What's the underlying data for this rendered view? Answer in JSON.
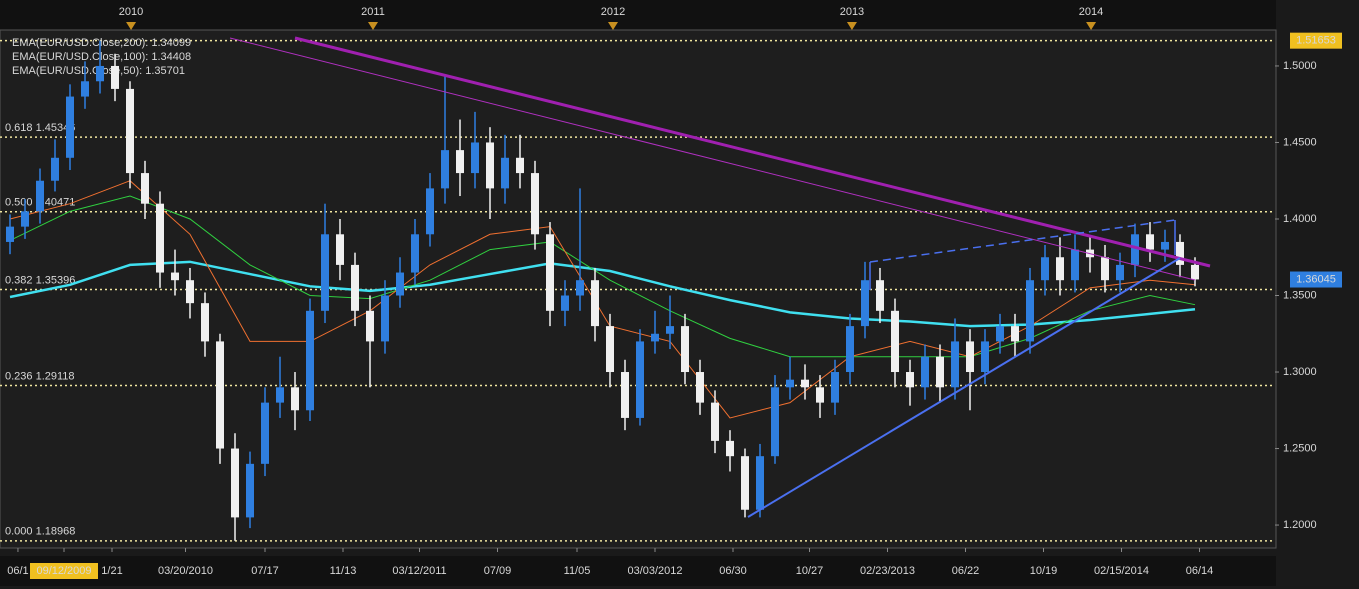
{
  "chart_data": {
    "type": "candlestick",
    "xlim": [
      -0.6667,
      84.3333
    ],
    "ylim": [
      1.185,
      1.5235
    ],
    "yticks": [
      {
        "value": 1.5,
        "label": "1.5000"
      },
      {
        "value": 1.45,
        "label": "1.4500"
      },
      {
        "value": 1.4,
        "label": "1.4000"
      },
      {
        "value": 1.35,
        "label": "1.3500"
      },
      {
        "value": 1.3,
        "label": "1.3000"
      },
      {
        "value": 1.25,
        "label": "1.2500"
      },
      {
        "value": 1.2,
        "label": "1.2000"
      }
    ],
    "xticks": [
      {
        "value": 0.53,
        "label": "06/1"
      },
      {
        "value": 3.6,
        "label": "09/12/2009"
      },
      {
        "value": 6.8,
        "label": "1/21"
      },
      {
        "value": 11.7,
        "label": "03/20/2010"
      },
      {
        "value": 17,
        "label": "07/17"
      },
      {
        "value": 22.2,
        "label": "11/13"
      },
      {
        "value": 27.3,
        "label": "03/12/2011"
      },
      {
        "value": 32.5,
        "label": "07/09"
      },
      {
        "value": 37.8,
        "label": "11/05"
      },
      {
        "value": 43,
        "label": "03/03/2012"
      },
      {
        "value": 48.2,
        "label": "06/30"
      },
      {
        "value": 53.3,
        "label": "10/27"
      },
      {
        "value": 58.5,
        "label": "02/23/2013"
      },
      {
        "value": 63.7,
        "label": "06/22"
      },
      {
        "value": 68.9,
        "label": "10/19"
      },
      {
        "value": 74.1,
        "label": "02/15/2014"
      },
      {
        "value": 79.3,
        "label": "06/14"
      }
    ],
    "year_ticks": [
      {
        "value": 8.07,
        "label": "2010"
      },
      {
        "value": 24.2,
        "label": "2011"
      },
      {
        "value": 40.2,
        "label": "2012"
      },
      {
        "value": 56.13,
        "label": "2013"
      },
      {
        "value": 72.07,
        "label": "2014"
      }
    ],
    "up_color": "#2f7fe0",
    "down_color": "#f0f0f0",
    "open": [
      1.385,
      1.395,
      1.405,
      1.425,
      1.44,
      1.48,
      1.49,
      1.5,
      1.485,
      1.43,
      1.41,
      1.365,
      1.36,
      1.345,
      1.32,
      1.25,
      1.205,
      1.24,
      1.28,
      1.29,
      1.275,
      1.34,
      1.39,
      1.37,
      1.34,
      1.32,
      1.35,
      1.365,
      1.39,
      1.42,
      1.445,
      1.43,
      1.45,
      1.42,
      1.44,
      1.43,
      1.39,
      1.34,
      1.35,
      1.36,
      1.33,
      1.3,
      1.27,
      1.32,
      1.325,
      1.33,
      1.3,
      1.28,
      1.255,
      1.245,
      1.21,
      1.245,
      1.29,
      1.295,
      1.29,
      1.28,
      1.3,
      1.33,
      1.36,
      1.34,
      1.3,
      1.29,
      1.31,
      1.29,
      1.32,
      1.3,
      1.32,
      1.33,
      1.32,
      1.36,
      1.375,
      1.36,
      1.38,
      1.375,
      1.36,
      1.37,
      1.39,
      1.38,
      1.385,
      1.37
    ],
    "high": [
      1.403,
      1.413,
      1.433,
      1.452,
      1.488,
      1.503,
      1.51653,
      1.508,
      1.49,
      1.438,
      1.418,
      1.38,
      1.368,
      1.352,
      1.325,
      1.26,
      1.248,
      1.29,
      1.31,
      1.3,
      1.348,
      1.41,
      1.4,
      1.378,
      1.35,
      1.36,
      1.375,
      1.4,
      1.43,
      1.494,
      1.465,
      1.47,
      1.46,
      1.455,
      1.455,
      1.438,
      1.398,
      1.36,
      1.42,
      1.368,
      1.338,
      1.308,
      1.328,
      1.34,
      1.35,
      1.338,
      1.308,
      1.288,
      1.262,
      1.25,
      1.253,
      1.298,
      1.31,
      1.305,
      1.298,
      1.308,
      1.338,
      1.372,
      1.368,
      1.348,
      1.308,
      1.318,
      1.318,
      1.335,
      1.328,
      1.328,
      1.338,
      1.338,
      1.368,
      1.383,
      1.388,
      1.39,
      1.388,
      1.383,
      1.378,
      1.397,
      1.398,
      1.393,
      1.39,
      1.375
    ],
    "low": [
      1.377,
      1.387,
      1.397,
      1.418,
      1.432,
      1.472,
      1.482,
      1.477,
      1.42,
      1.4,
      1.355,
      1.35,
      1.335,
      1.31,
      1.24,
      1.18968,
      1.198,
      1.232,
      1.27,
      1.262,
      1.268,
      1.332,
      1.36,
      1.33,
      1.29,
      1.312,
      1.342,
      1.357,
      1.382,
      1.41,
      1.415,
      1.42,
      1.4,
      1.41,
      1.42,
      1.38,
      1.33,
      1.33,
      1.34,
      1.32,
      1.29,
      1.262,
      1.265,
      1.312,
      1.315,
      1.292,
      1.272,
      1.247,
      1.235,
      1.205,
      1.205,
      1.24,
      1.282,
      1.282,
      1.27,
      1.272,
      1.292,
      1.322,
      1.332,
      1.29,
      1.278,
      1.282,
      1.28,
      1.282,
      1.275,
      1.292,
      1.312,
      1.31,
      1.312,
      1.35,
      1.35,
      1.352,
      1.365,
      1.352,
      1.352,
      1.362,
      1.372,
      1.372,
      1.362,
      1.356
    ],
    "close": [
      1.395,
      1.405,
      1.425,
      1.44,
      1.48,
      1.49,
      1.5,
      1.485,
      1.43,
      1.41,
      1.365,
      1.36,
      1.345,
      1.32,
      1.25,
      1.205,
      1.24,
      1.28,
      1.29,
      1.275,
      1.34,
      1.39,
      1.37,
      1.34,
      1.32,
      1.35,
      1.365,
      1.39,
      1.42,
      1.445,
      1.43,
      1.45,
      1.42,
      1.44,
      1.43,
      1.39,
      1.34,
      1.35,
      1.36,
      1.33,
      1.3,
      1.27,
      1.32,
      1.325,
      1.33,
      1.3,
      1.28,
      1.255,
      1.245,
      1.21,
      1.245,
      1.29,
      1.295,
      1.29,
      1.28,
      1.3,
      1.33,
      1.36,
      1.34,
      1.3,
      1.29,
      1.31,
      1.29,
      1.32,
      1.3,
      1.32,
      1.33,
      1.32,
      1.36,
      1.375,
      1.36,
      1.38,
      1.375,
      1.36,
      1.37,
      1.39,
      1.38,
      1.385,
      1.37,
      1.3605
    ],
    "series": [
      {
        "name": "EMA(EUR/USD.Close,200): 1.34099",
        "color": "#40e0f0",
        "width": 2.5,
        "x": [
          0,
          4,
          8,
          12,
          16,
          20,
          24,
          28,
          32,
          36,
          40,
          44,
          48,
          52,
          56,
          60,
          64,
          68,
          72,
          76,
          79
        ],
        "values": [
          1.349,
          1.357,
          1.37,
          1.372,
          1.364,
          1.356,
          1.353,
          1.357,
          1.364,
          1.371,
          1.366,
          1.356,
          1.347,
          1.339,
          1.335,
          1.333,
          1.33,
          1.331,
          1.334,
          1.338,
          1.341
        ]
      },
      {
        "name": "EMA(EUR/USD.Close,100): 1.34408",
        "color": "#30d040",
        "width": 1,
        "x": [
          0,
          4,
          8,
          12,
          16,
          20,
          24,
          28,
          32,
          36,
          40,
          44,
          48,
          52,
          56,
          60,
          64,
          68,
          72,
          76,
          79
        ],
        "values": [
          1.386,
          1.405,
          1.415,
          1.4,
          1.37,
          1.35,
          1.348,
          1.36,
          1.38,
          1.385,
          1.36,
          1.34,
          1.322,
          1.31,
          1.31,
          1.31,
          1.31,
          1.322,
          1.34,
          1.35,
          1.344
        ]
      },
      {
        "name": "EMA(EUR/USD.Close,50): 1.35701",
        "color": "#f07030",
        "width": 1,
        "x": [
          0,
          4,
          8,
          12,
          16,
          20,
          24,
          28,
          32,
          36,
          40,
          44,
          48,
          52,
          56,
          60,
          64,
          68,
          72,
          76,
          79
        ],
        "values": [
          1.4,
          1.41,
          1.425,
          1.39,
          1.32,
          1.32,
          1.34,
          1.37,
          1.39,
          1.395,
          1.33,
          1.32,
          1.27,
          1.28,
          1.31,
          1.32,
          1.31,
          1.33,
          1.355,
          1.36,
          1.357
        ]
      }
    ],
    "fib_levels": [
      {
        "label": "0.618 1.45346",
        "value": 1.45346
      },
      {
        "label": "0.500 1.40471",
        "value": 1.40471
      },
      {
        "label": "0.382 1.35396",
        "value": 1.35396
      },
      {
        "label": "0.236 1.29118",
        "value": 1.29118
      },
      {
        "label": "0.000 1.18968",
        "value": 1.18968
      }
    ],
    "high_level": 1.51653,
    "last_price": 1.36045
  }
}
